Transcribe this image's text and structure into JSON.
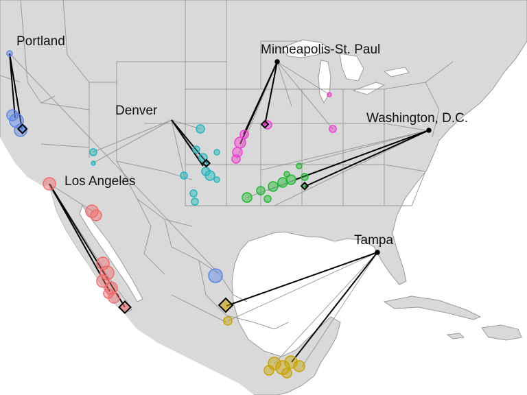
{
  "colors": {
    "ocean": "#ffffff",
    "land": "#d9d9d9",
    "border": "#9a9a9a",
    "line_strong": "#000000",
    "line_weak": "#8a8a8a"
  },
  "hubs": [
    {
      "name": "Portland",
      "color": "#5b86e5"
    },
    {
      "name": "Denver",
      "color": "#22b5bf"
    },
    {
      "name": "Minneapolis-St. Paul",
      "color": "#ef3fd0"
    },
    {
      "name": "Washington, D.C.",
      "color": "#1fb831"
    },
    {
      "name": "Los Angeles",
      "color": "#f26b6b"
    },
    {
      "name": "Tampa",
      "color": "#c8a200"
    }
  ]
}
